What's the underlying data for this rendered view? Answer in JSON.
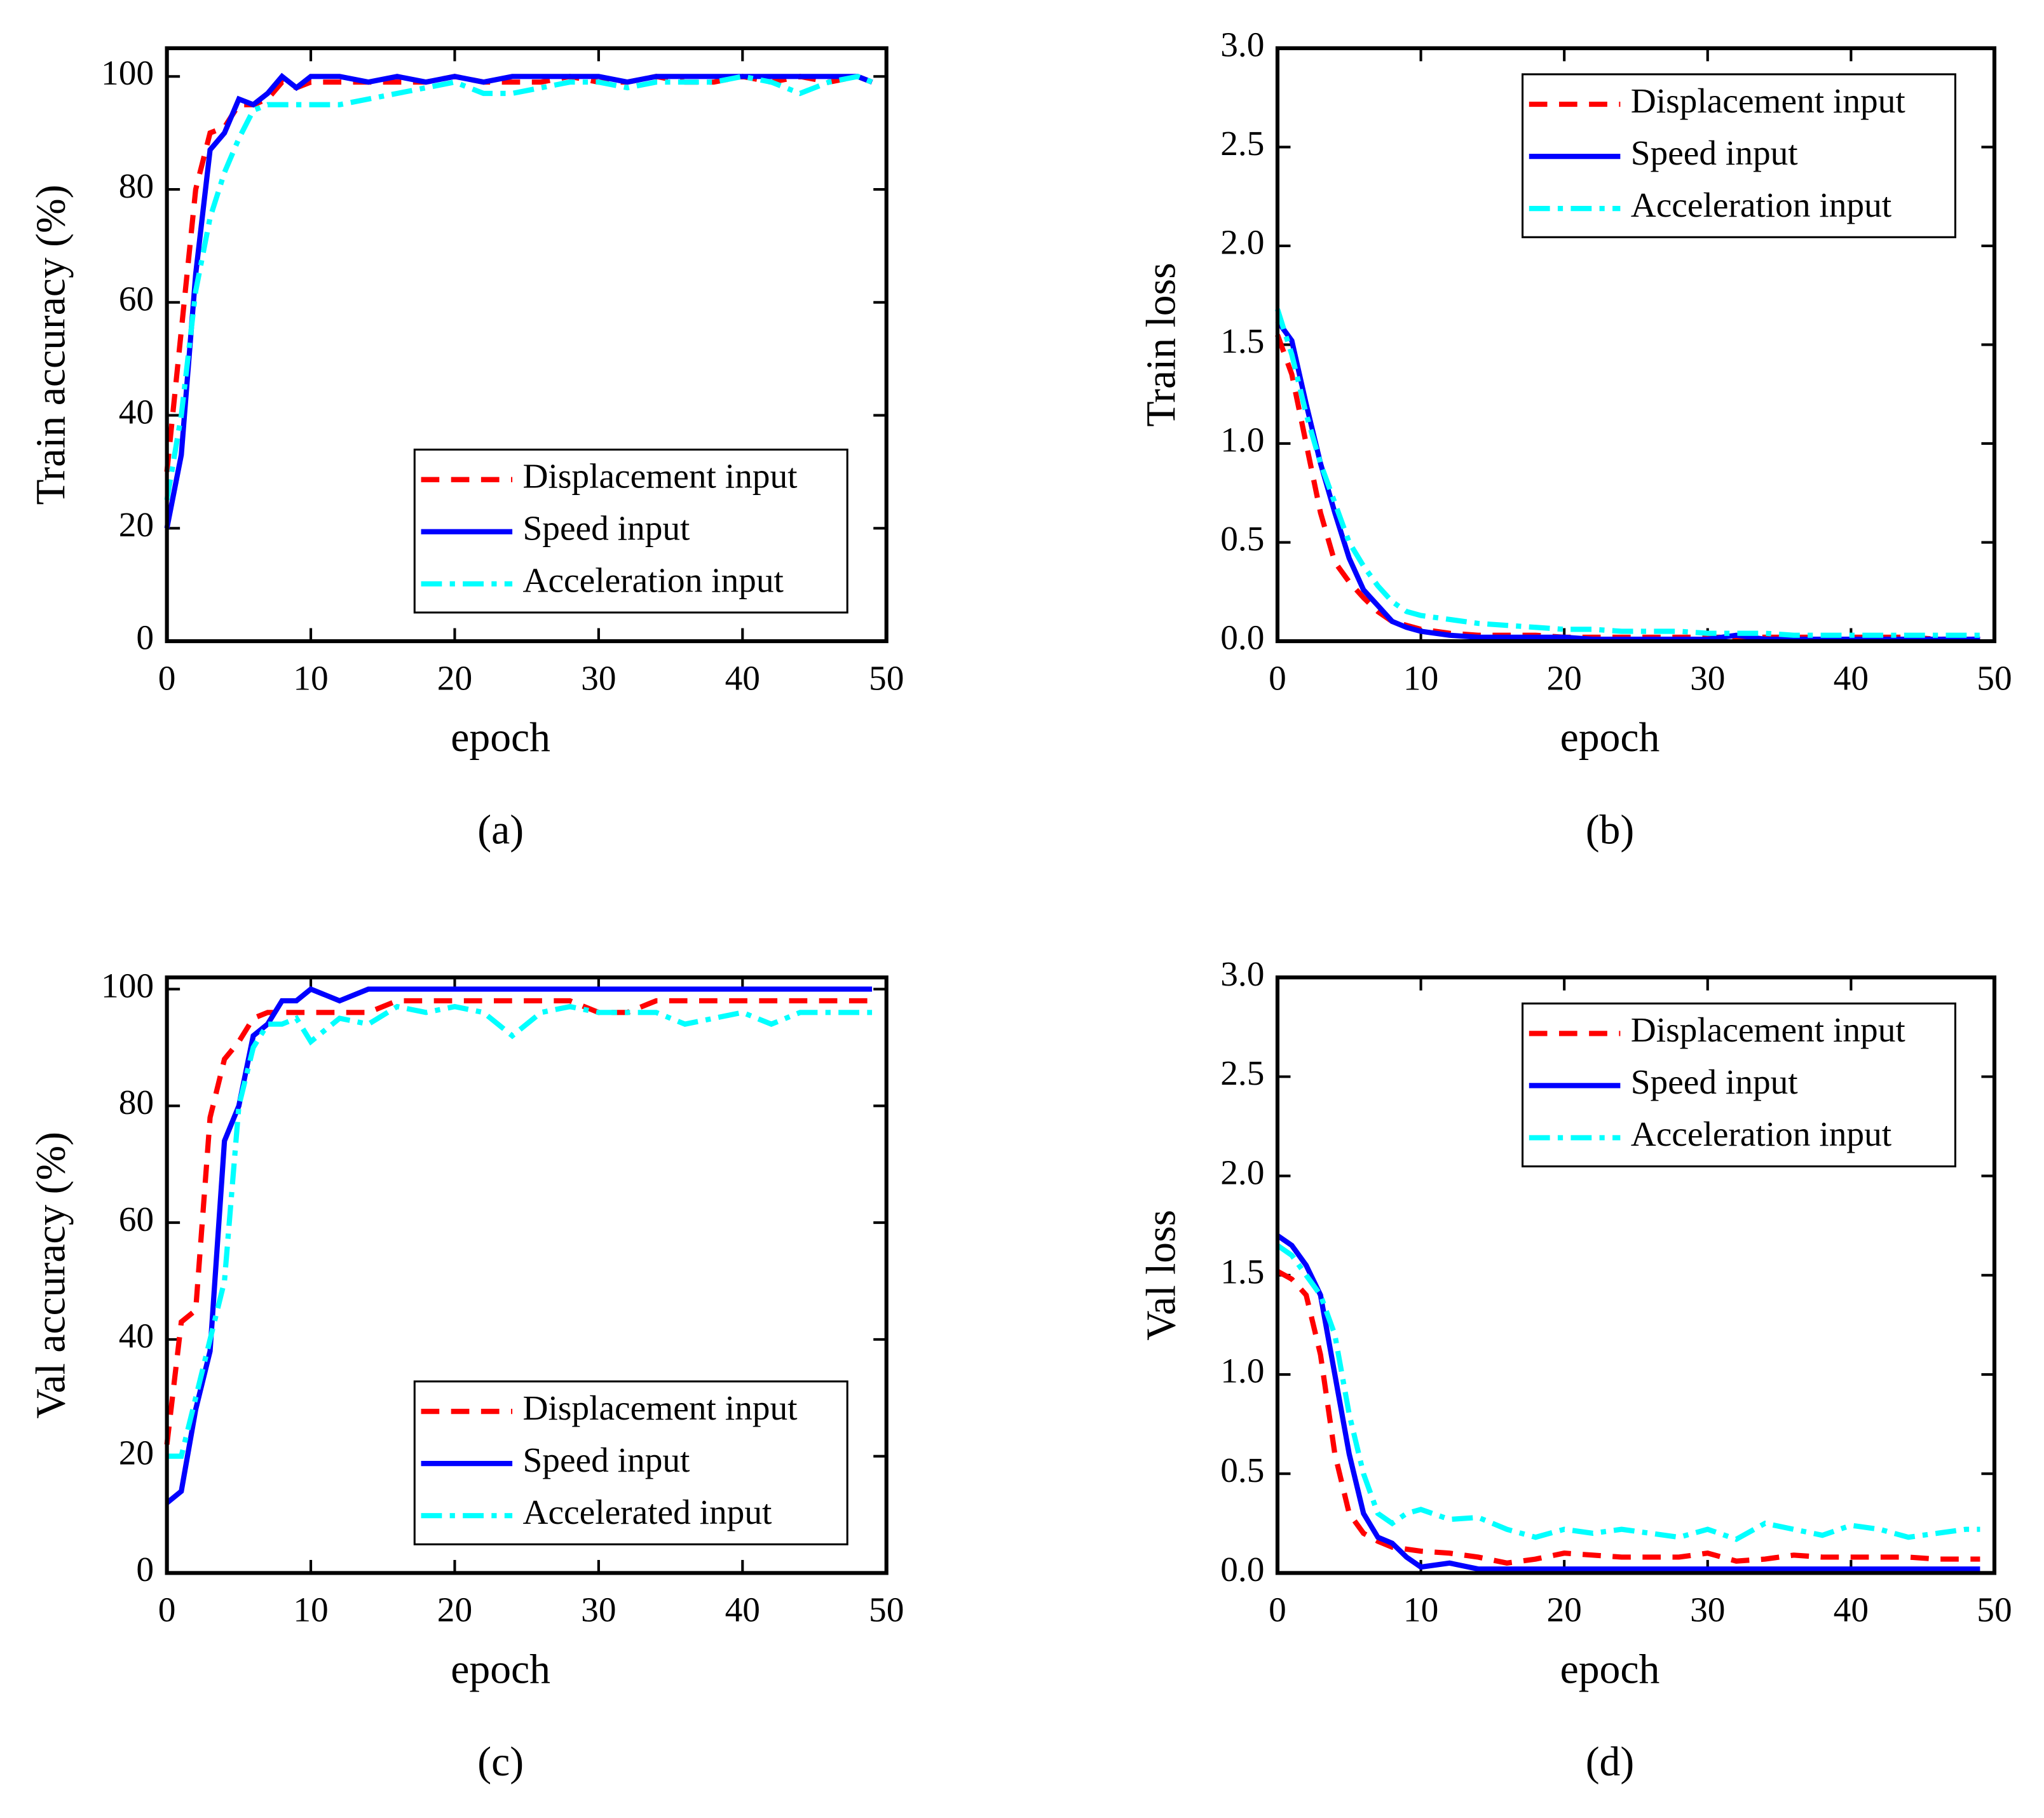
{
  "chart_data": [
    {
      "type": "line",
      "caption": "(a)",
      "xlabel": "epoch",
      "ylabel": "Train accuracy (%)",
      "x": [
        0,
        1,
        2,
        3,
        4,
        5,
        6,
        7,
        8,
        9,
        10,
        12,
        14,
        16,
        18,
        20,
        22,
        24,
        26,
        28,
        30,
        32,
        34,
        36,
        38,
        40,
        42,
        44,
        46,
        48,
        49
      ],
      "xlim": [
        0,
        50
      ],
      "xticks": [
        0,
        10,
        20,
        30,
        40,
        50
      ],
      "ylim": [
        0,
        105
      ],
      "yticks": [
        0,
        20,
        40,
        60,
        80,
        100
      ],
      "legend": "lower right",
      "series": [
        {
          "name": "Displacement input",
          "color": "#ff0000",
          "dash": "dashed",
          "values": [
            30,
            55,
            80,
            90,
            91,
            95,
            95,
            96,
            99,
            98,
            99,
            99,
            99,
            99,
            99,
            100,
            99,
            99,
            99,
            100,
            99,
            99,
            100,
            99,
            99,
            100,
            99,
            100,
            99,
            100,
            99
          ]
        },
        {
          "name": "Speed input",
          "color": "#0000ff",
          "dash": "solid",
          "values": [
            20,
            33,
            65,
            87,
            90,
            96,
            95,
            97,
            100,
            98,
            100,
            100,
            99,
            100,
            99,
            100,
            99,
            100,
            100,
            100,
            100,
            99,
            100,
            100,
            100,
            100,
            100,
            100,
            100,
            100,
            99
          ]
        },
        {
          "name": "Acceleration input",
          "color": "#00ffff",
          "dash": "dashdot",
          "values": [
            25,
            40,
            62,
            75,
            83,
            89,
            94,
            95,
            95,
            95,
            95,
            95,
            96,
            97,
            98,
            99,
            97,
            97,
            98,
            99,
            99,
            98,
            99,
            99,
            99,
            100,
            99,
            97,
            99,
            100,
            99
          ]
        }
      ]
    },
    {
      "type": "line",
      "caption": "(b)",
      "xlabel": "epoch",
      "ylabel": "Train loss",
      "x": [
        0,
        1,
        2,
        3,
        4,
        5,
        6,
        7,
        8,
        9,
        10,
        12,
        14,
        16,
        18,
        20,
        22,
        24,
        26,
        28,
        30,
        32,
        34,
        36,
        38,
        40,
        42,
        44,
        46,
        48,
        49
      ],
      "xlim": [
        0,
        50
      ],
      "xticks": [
        0,
        10,
        20,
        30,
        40,
        50
      ],
      "ylim": [
        0,
        3
      ],
      "yticks": [
        {
          "value": 0,
          "label": "0.0"
        },
        0.5,
        {
          "value": 1,
          "label": "1.0"
        },
        1.5,
        {
          "value": 2,
          "label": "2.0"
        },
        2.5,
        {
          "value": 3,
          "label": "3.0"
        }
      ],
      "legend": "upper right",
      "series": [
        {
          "name": "Displacement input",
          "color": "#ff0000",
          "dash": "dashed",
          "values": [
            1.55,
            1.35,
            1.0,
            0.65,
            0.4,
            0.3,
            0.22,
            0.15,
            0.1,
            0.08,
            0.06,
            0.04,
            0.03,
            0.03,
            0.03,
            0.02,
            0.02,
            0.02,
            0.02,
            0.02,
            0.02,
            0.02,
            0.02,
            0.02,
            0.02,
            0.02,
            0.02,
            0.02,
            0.01,
            0.01,
            0.01
          ]
        },
        {
          "name": "Speed input",
          "color": "#0000ff",
          "dash": "solid",
          "values": [
            1.62,
            1.52,
            1.2,
            0.9,
            0.65,
            0.42,
            0.26,
            0.18,
            0.1,
            0.07,
            0.05,
            0.03,
            0.02,
            0.02,
            0.02,
            0.02,
            0.01,
            0.01,
            0.01,
            0.01,
            0.01,
            0.03,
            0.01,
            0.01,
            0.01,
            0.01,
            0.01,
            0.01,
            0.01,
            0.01,
            0.01
          ]
        },
        {
          "name": "Acceleration input",
          "color": "#00ffff",
          "dash": "dashdot",
          "values": [
            1.68,
            1.45,
            1.15,
            0.9,
            0.7,
            0.5,
            0.38,
            0.28,
            0.2,
            0.15,
            0.13,
            0.11,
            0.09,
            0.08,
            0.07,
            0.06,
            0.06,
            0.05,
            0.05,
            0.05,
            0.04,
            0.04,
            0.04,
            0.03,
            0.03,
            0.03,
            0.03,
            0.03,
            0.03,
            0.03,
            0.03
          ]
        }
      ]
    },
    {
      "type": "line",
      "caption": "(c)",
      "xlabel": "epoch",
      "ylabel": "Val accuracy (%)",
      "x": [
        0,
        1,
        2,
        3,
        4,
        5,
        6,
        7,
        8,
        9,
        10,
        12,
        14,
        16,
        18,
        20,
        22,
        24,
        26,
        28,
        30,
        32,
        34,
        36,
        38,
        40,
        42,
        44,
        46,
        48,
        49
      ],
      "xlim": [
        0,
        50
      ],
      "xticks": [
        0,
        10,
        20,
        30,
        40,
        50
      ],
      "ylim": [
        0,
        102
      ],
      "yticks": [
        0,
        20,
        40,
        60,
        80,
        100
      ],
      "legend": "lower right",
      "series": [
        {
          "name": "Displacement input",
          "color": "#ff0000",
          "dash": "dashed",
          "values": [
            22,
            43,
            45,
            78,
            88,
            91,
            95,
            96,
            96,
            96,
            96,
            96,
            96,
            98,
            98,
            98,
            98,
            98,
            98,
            98,
            96,
            96,
            98,
            98,
            98,
            98,
            98,
            98,
            98,
            98,
            98
          ]
        },
        {
          "name": "Speed input",
          "color": "#0000ff",
          "dash": "solid",
          "values": [
            12,
            14,
            28,
            38,
            74,
            80,
            92,
            94,
            98,
            98,
            100,
            98,
            100,
            100,
            100,
            100,
            100,
            100,
            100,
            100,
            100,
            100,
            100,
            100,
            100,
            100,
            100,
            100,
            100,
            100,
            100
          ]
        },
        {
          "name": "Accelerated input",
          "color": "#00ffff",
          "dash": "dashdot",
          "values": [
            20,
            20,
            30,
            40,
            50,
            80,
            90,
            94,
            94,
            95,
            91,
            95,
            94,
            97,
            96,
            97,
            96,
            92,
            96,
            97,
            96,
            96,
            96,
            94,
            95,
            96,
            94,
            96,
            96,
            96,
            96
          ]
        }
      ]
    },
    {
      "type": "line",
      "caption": "(d)",
      "xlabel": "epoch",
      "ylabel": "Val loss",
      "x": [
        0,
        1,
        2,
        3,
        4,
        5,
        6,
        7,
        8,
        9,
        10,
        12,
        14,
        16,
        18,
        20,
        22,
        24,
        26,
        28,
        30,
        32,
        34,
        36,
        38,
        40,
        42,
        44,
        46,
        48,
        49
      ],
      "xlim": [
        0,
        50
      ],
      "xticks": [
        0,
        10,
        20,
        30,
        40,
        50
      ],
      "ylim": [
        0,
        3
      ],
      "yticks": [
        {
          "value": 0,
          "label": "0.0"
        },
        0.5,
        {
          "value": 1,
          "label": "1.0"
        },
        1.5,
        {
          "value": 2,
          "label": "2.0"
        },
        2.5,
        {
          "value": 3,
          "label": "3.0"
        }
      ],
      "legend": "upper right",
      "series": [
        {
          "name": "Displacement input",
          "color": "#ff0000",
          "dash": "dashed",
          "values": [
            1.52,
            1.48,
            1.4,
            1.1,
            0.6,
            0.3,
            0.2,
            0.16,
            0.13,
            0.12,
            0.11,
            0.1,
            0.08,
            0.05,
            0.07,
            0.1,
            0.09,
            0.08,
            0.08,
            0.08,
            0.1,
            0.06,
            0.07,
            0.09,
            0.08,
            0.08,
            0.08,
            0.08,
            0.07,
            0.07,
            0.07
          ]
        },
        {
          "name": "Speed input",
          "color": "#0000ff",
          "dash": "solid",
          "values": [
            1.7,
            1.65,
            1.55,
            1.4,
            1.0,
            0.6,
            0.3,
            0.18,
            0.15,
            0.08,
            0.03,
            0.05,
            0.02,
            0.02,
            0.02,
            0.02,
            0.02,
            0.02,
            0.02,
            0.02,
            0.02,
            0.02,
            0.02,
            0.02,
            0.02,
            0.02,
            0.02,
            0.02,
            0.02,
            0.02,
            0.02
          ]
        },
        {
          "name": "Acceleration input",
          "color": "#00ffff",
          "dash": "dashdot",
          "values": [
            1.65,
            1.6,
            1.5,
            1.4,
            1.2,
            0.8,
            0.5,
            0.3,
            0.25,
            0.3,
            0.32,
            0.27,
            0.28,
            0.22,
            0.18,
            0.22,
            0.2,
            0.22,
            0.2,
            0.18,
            0.22,
            0.17,
            0.25,
            0.22,
            0.19,
            0.24,
            0.22,
            0.18,
            0.2,
            0.22,
            0.22
          ]
        }
      ]
    }
  ]
}
